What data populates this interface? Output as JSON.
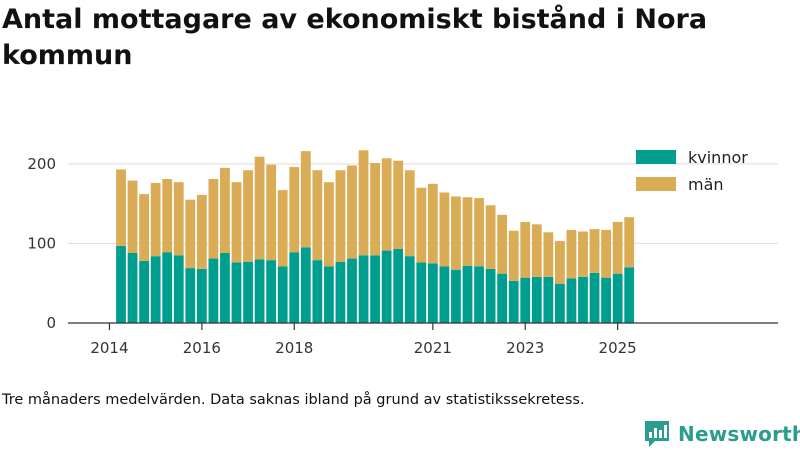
{
  "chart_data": {
    "type": "bar",
    "stacked": true,
    "title": "Antal mottagare av ekonomiskt bistånd i Nora kommun",
    "xlabel": "",
    "ylabel": "",
    "ylim": [
      0,
      230
    ],
    "yticks": [
      0,
      100,
      200
    ],
    "grid": true,
    "legend_position": "top-right",
    "x_start": "2014-04",
    "x_step_months": 3,
    "xticks": [
      {
        "label": "2014",
        "year": 2014
      },
      {
        "label": "2016",
        "year": 2016
      },
      {
        "label": "2018",
        "year": 2018
      },
      {
        "label": "2021",
        "year": 2021
      },
      {
        "label": "2023",
        "year": 2023
      },
      {
        "label": "2025",
        "year": 2025
      }
    ],
    "series": [
      {
        "name": "kvinnor",
        "color": "#009e8e",
        "values": [
          97,
          88,
          78,
          84,
          89,
          85,
          69,
          68,
          81,
          88,
          76,
          77,
          80,
          79,
          71,
          89,
          95,
          79,
          71,
          77,
          81,
          85,
          85,
          91,
          93,
          84,
          76,
          75,
          71,
          67,
          72,
          71,
          68,
          62,
          53,
          57,
          58,
          58,
          49,
          56,
          58,
          63,
          57,
          62,
          70
        ]
      },
      {
        "name": "män",
        "color": "#d9ac55",
        "values": [
          96,
          91,
          84,
          92,
          92,
          92,
          86,
          93,
          100,
          107,
          101,
          115,
          129,
          120,
          96,
          107,
          121,
          113,
          106,
          115,
          117,
          132,
          116,
          116,
          111,
          108,
          94,
          100,
          93,
          92,
          86,
          86,
          80,
          74,
          63,
          70,
          66,
          56,
          54,
          61,
          57,
          55,
          60,
          65,
          63
        ]
      }
    ]
  },
  "note": "Tre månaders medelvärden. Data saknas ibland på grund av statistikssekretess.",
  "brand": {
    "name": "Newsworthy",
    "color": "#2a9d8f"
  }
}
